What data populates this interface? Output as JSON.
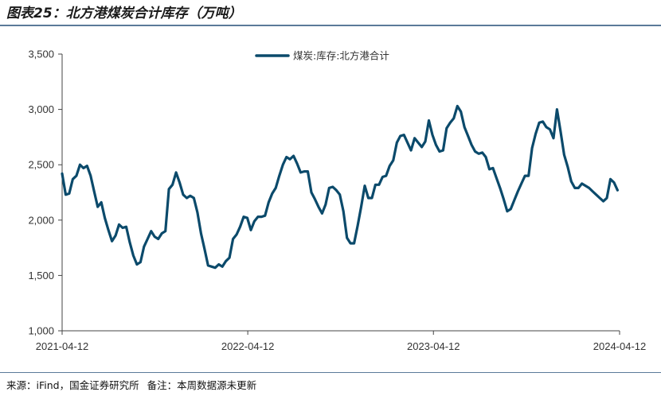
{
  "header": {
    "title": "图表25：北方港煤炭合计库存（万吨）"
  },
  "footer": {
    "source": "来源：iFind，国金证券研究所",
    "note": "备注：本周数据源未更新"
  },
  "colors": {
    "series": "#0b4a6b",
    "axis": "#444444",
    "rule": "#5b7a99"
  },
  "chart_data": {
    "type": "line",
    "title": "",
    "xlabel": "",
    "ylabel": "",
    "ylim": [
      1000,
      3500
    ],
    "yticks": [
      "1,000",
      "1,500",
      "2,000",
      "2,500",
      "3,000",
      "3,500"
    ],
    "ytick_values": [
      1000,
      1500,
      2000,
      2500,
      3000,
      3500
    ],
    "xlim": [
      "2021-04-12",
      "2024-04-12"
    ],
    "xticks": [
      "2021-04-12",
      "2022-04-12",
      "2023-04-12",
      "2024-04-12"
    ],
    "grid": false,
    "legend": "top-center",
    "series": [
      {
        "name": "煤炭:库存:北方港合计",
        "x": [
          "2021-04-12",
          "2021-04-19",
          "2021-04-26",
          "2021-05-03",
          "2021-05-10",
          "2021-05-17",
          "2021-05-24",
          "2021-05-31",
          "2021-06-07",
          "2021-06-14",
          "2021-06-21",
          "2021-06-28",
          "2021-07-05",
          "2021-07-12",
          "2021-07-19",
          "2021-07-26",
          "2021-08-02",
          "2021-08-09",
          "2021-08-16",
          "2021-08-23",
          "2021-08-30",
          "2021-09-06",
          "2021-09-13",
          "2021-09-20",
          "2021-09-27",
          "2021-10-04",
          "2021-10-11",
          "2021-10-18",
          "2021-10-25",
          "2021-11-01",
          "2021-11-08",
          "2021-11-15",
          "2021-11-22",
          "2021-11-29",
          "2021-12-06",
          "2021-12-13",
          "2021-12-20",
          "2021-12-27",
          "2022-01-03",
          "2022-01-10",
          "2022-01-17",
          "2022-01-24",
          "2022-01-31",
          "2022-02-07",
          "2022-02-14",
          "2022-02-21",
          "2022-02-28",
          "2022-03-07",
          "2022-03-14",
          "2022-03-21",
          "2022-03-28",
          "2022-04-04",
          "2022-04-11",
          "2022-04-18",
          "2022-04-25",
          "2022-05-02",
          "2022-05-09",
          "2022-05-16",
          "2022-05-23",
          "2022-05-30",
          "2022-06-06",
          "2022-06-13",
          "2022-06-20",
          "2022-06-27",
          "2022-07-04",
          "2022-07-11",
          "2022-07-18",
          "2022-07-25",
          "2022-08-01",
          "2022-08-08",
          "2022-08-15",
          "2022-08-22",
          "2022-08-29",
          "2022-09-05",
          "2022-09-12",
          "2022-09-19",
          "2022-09-26",
          "2022-10-03",
          "2022-10-10",
          "2022-10-17",
          "2022-10-24",
          "2022-10-31",
          "2022-11-07",
          "2022-11-14",
          "2022-11-21",
          "2022-11-28",
          "2022-12-05",
          "2022-12-12",
          "2022-12-19",
          "2022-12-26",
          "2023-01-02",
          "2023-01-09",
          "2023-01-16",
          "2023-01-23",
          "2023-01-30",
          "2023-02-06",
          "2023-02-13",
          "2023-02-20",
          "2023-02-27",
          "2023-03-06",
          "2023-03-13",
          "2023-03-20",
          "2023-03-27",
          "2023-04-03",
          "2023-04-10",
          "2023-04-17",
          "2023-04-24",
          "2023-05-01",
          "2023-05-08",
          "2023-05-15",
          "2023-05-22",
          "2023-05-29",
          "2023-06-05",
          "2023-06-12",
          "2023-06-19",
          "2023-06-26",
          "2023-07-03",
          "2023-07-10",
          "2023-07-17",
          "2023-07-24",
          "2023-07-31",
          "2023-08-07",
          "2023-08-14",
          "2023-08-21",
          "2023-08-28",
          "2023-09-04",
          "2023-09-11",
          "2023-09-18",
          "2023-09-25",
          "2023-10-02",
          "2023-10-09",
          "2023-10-16",
          "2023-10-23",
          "2023-10-30",
          "2023-11-06",
          "2023-11-13",
          "2023-11-20",
          "2023-11-27",
          "2023-12-04",
          "2023-12-11",
          "2023-12-18",
          "2023-12-25",
          "2024-01-01",
          "2024-01-08",
          "2024-01-15",
          "2024-01-22",
          "2024-01-29",
          "2024-02-05",
          "2024-02-12",
          "2024-02-19",
          "2024-02-26",
          "2024-03-04",
          "2024-03-11",
          "2024-03-18",
          "2024-03-25",
          "2024-04-01",
          "2024-04-08"
        ],
        "values": [
          2420,
          2230,
          2240,
          2370,
          2400,
          2500,
          2470,
          2490,
          2400,
          2260,
          2120,
          2160,
          2020,
          1910,
          1810,
          1860,
          1960,
          1930,
          1940,
          1800,
          1680,
          1600,
          1620,
          1760,
          1830,
          1900,
          1850,
          1830,
          1880,
          1900,
          2280,
          2320,
          2430,
          2340,
          2230,
          2200,
          2220,
          2200,
          2070,
          1880,
          1740,
          1590,
          1580,
          1570,
          1600,
          1580,
          1630,
          1660,
          1830,
          1870,
          1940,
          2030,
          2020,
          1910,
          1990,
          2030,
          2030,
          2040,
          2160,
          2240,
          2290,
          2400,
          2500,
          2570,
          2550,
          2580,
          2510,
          2430,
          2440,
          2440,
          2250,
          2190,
          2120,
          2060,
          2140,
          2290,
          2300,
          2270,
          2230,
          2080,
          1840,
          1790,
          1790,
          1950,
          2120,
          2310,
          2200,
          2200,
          2320,
          2320,
          2390,
          2400,
          2490,
          2540,
          2700,
          2760,
          2770,
          2700,
          2630,
          2740,
          2700,
          2660,
          2710,
          2900,
          2770,
          2680,
          2620,
          2630,
          2830,
          2880,
          2920,
          3030,
          2980,
          2840,
          2760,
          2680,
          2620,
          2600,
          2610,
          2570,
          2460,
          2470,
          2380,
          2290,
          2190,
          2080,
          2100,
          2180,
          2260,
          2330,
          2400,
          2400,
          2650,
          2780,
          2880,
          2890,
          2840,
          2820,
          2740,
          3000,
          2800,
          2590,
          2480,
          2350,
          2290,
          2290,
          2330,
          2310,
          2290,
          2260,
          2230,
          2200,
          2170,
          2200,
          2370,
          2340,
          2270
        ]
      }
    ]
  }
}
